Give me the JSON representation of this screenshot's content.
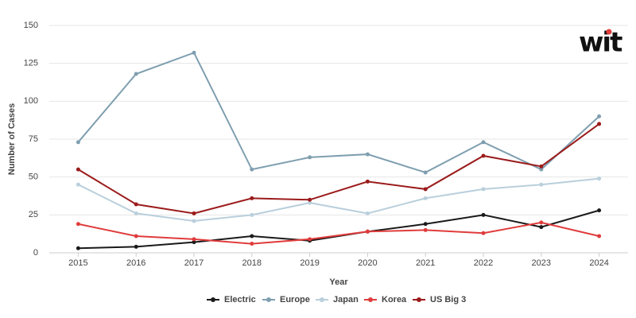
{
  "chart_data": {
    "type": "line",
    "y_label": "Number of Cases",
    "x_label": "Year",
    "logo": "wit",
    "categories": [
      "2015",
      "2016",
      "2017",
      "2018",
      "2019",
      "2020",
      "2021",
      "2022",
      "2023",
      "2024"
    ],
    "series": [
      {
        "name": "Electric",
        "color": "#1a1a1a",
        "values": [
          3,
          4,
          7,
          11,
          8,
          14,
          19,
          25,
          17,
          28
        ]
      },
      {
        "name": "Europe",
        "color": "#7f9fb0",
        "values": [
          73,
          118,
          132,
          55,
          63,
          65,
          53,
          73,
          55,
          90
        ]
      },
      {
        "name": "Japan",
        "color": "#b9cfdc",
        "values": [
          45,
          26,
          21,
          25,
          33,
          26,
          36,
          42,
          45,
          49
        ]
      },
      {
        "name": "Korea",
        "color": "#e03c3c",
        "values": [
          19,
          11,
          9,
          6,
          9,
          14,
          15,
          13,
          20,
          11
        ]
      },
      {
        "name": "US Big 3",
        "color": "#9b1b1b",
        "values": [
          55,
          32,
          26,
          36,
          35,
          47,
          42,
          64,
          57,
          85
        ]
      }
    ],
    "ylim": [
      0,
      150
    ],
    "yticks": [
      0,
      25,
      50,
      75,
      100,
      125,
      150
    ],
    "grid": true,
    "legend": "bottom"
  }
}
